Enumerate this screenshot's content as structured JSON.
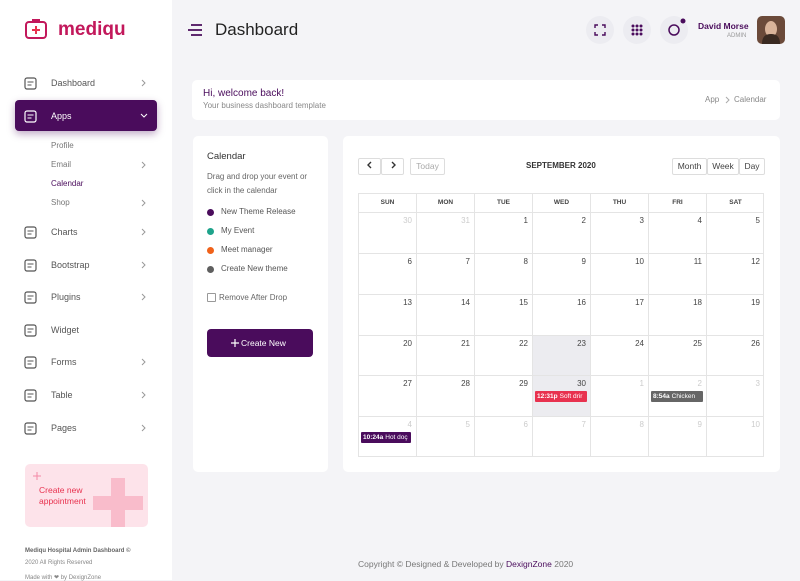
{
  "sidebar": {
    "logo": "mediqu",
    "nav": [
      {
        "label": "Dashboard"
      },
      {
        "label": "Apps",
        "submenu": [
          "Profile",
          "Email",
          "Calendar",
          "Shop"
        ]
      },
      {
        "label": "Charts"
      },
      {
        "label": "Bootstrap"
      },
      {
        "label": "Plugins"
      },
      {
        "label": "Widget"
      },
      {
        "label": "Forms"
      },
      {
        "label": "Table"
      },
      {
        "label": "Pages"
      }
    ],
    "appointment": "Create new appointment",
    "footer": {
      "line1": "Mediqu Hospital Admin Dashboard ©",
      "line2": "2020 All Rights Reserved",
      "line3": "Made with ❤ by DexignZone"
    }
  },
  "header": {
    "title": "Dashboard",
    "user_name": "David Morse",
    "user_role": "ADMIN"
  },
  "welcome": {
    "title": "Hi, welcome back!",
    "subtitle": "Your business dashboard template",
    "breadcrumb": [
      "App",
      "Calendar"
    ]
  },
  "calendar_panel": {
    "title": "Calendar",
    "hint": "Drag and drop your event or click in the calendar",
    "events": [
      {
        "label": "New Theme Release",
        "color": "#4a0c5c"
      },
      {
        "label": "My Event",
        "color": "#1ea38b"
      },
      {
        "label": "Meet manager",
        "color": "#f0621a"
      },
      {
        "label": "Create New theme",
        "color": "#5f5f5f"
      }
    ],
    "checkbox": "Remove After Drop",
    "button": "Create New"
  },
  "calendar": {
    "today": "Today",
    "month": "SEPTEMBER 2020",
    "views": [
      "Month",
      "Week",
      "Day"
    ],
    "weekdays": [
      "SUN",
      "MON",
      "TUE",
      "WED",
      "THU",
      "FRI",
      "SAT"
    ],
    "weeks": [
      [
        30,
        31,
        1,
        2,
        3,
        4,
        5
      ],
      [
        6,
        7,
        8,
        9,
        10,
        11,
        12
      ],
      [
        13,
        14,
        15,
        16,
        17,
        18,
        19
      ],
      [
        20,
        21,
        22,
        23,
        24,
        25,
        26
      ],
      [
        27,
        28,
        29,
        30,
        1,
        2,
        3
      ],
      [
        4,
        5,
        6,
        7,
        8,
        9,
        10
      ]
    ],
    "events": [
      {
        "time": "12:31p",
        "title": "Soft drir",
        "color": "#e8324f"
      },
      {
        "time": "8:54a",
        "title": "Chicken",
        "color": "#666666"
      },
      {
        "time": "10:24a",
        "title": "Hot doç",
        "color": "#4a0c5c"
      }
    ]
  },
  "footer": {
    "text": "Copyright © Designed & Developed by",
    "brand": "DexignZone",
    "year": "2020"
  }
}
